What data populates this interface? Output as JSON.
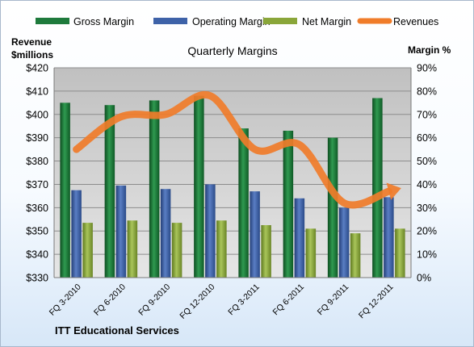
{
  "chart_data": {
    "type": "bar",
    "title": "Quarterly Margins",
    "left_axis_label_line1": "Revenue",
    "left_axis_label_line2": "$millions",
    "right_axis_label": "Margin %",
    "company": "ITT Educational Services",
    "categories": [
      "FQ 3-2010",
      "FQ 6-2010",
      "FQ 9-2010",
      "FQ 12-2010",
      "FQ 3-2011",
      "FQ 6-2011",
      "FQ 9-2011",
      "FQ 12-2011"
    ],
    "ylim_left": [
      330,
      420
    ],
    "left_ticks": [
      "$330",
      "$340",
      "$350",
      "$360",
      "$370",
      "$380",
      "$390",
      "$400",
      "$410",
      "$420"
    ],
    "ylim_right": [
      0,
      90
    ],
    "right_ticks": [
      "0%",
      "10%",
      "20%",
      "30%",
      "40%",
      "50%",
      "60%",
      "70%",
      "80%",
      "90%"
    ],
    "legend_position": "top",
    "grid": true,
    "series": [
      {
        "name": "Gross Margin",
        "type": "bar",
        "axis": "right",
        "color": "#1e7a3c",
        "values": [
          75,
          74,
          76,
          78,
          64,
          63,
          60,
          77
        ]
      },
      {
        "name": "Operating Margin",
        "type": "bar",
        "axis": "right",
        "color": "#3e62a8",
        "values": [
          37.5,
          39.5,
          38,
          40,
          37,
          34,
          30,
          34.5
        ]
      },
      {
        "name": "Net Margin",
        "type": "bar",
        "axis": "right",
        "color": "#8aa63a",
        "values": [
          23.5,
          24.5,
          23.5,
          24.5,
          22.5,
          21,
          19,
          21
        ]
      },
      {
        "name": "Revenues",
        "type": "line",
        "axis": "left",
        "color": "#f07c2a",
        "values": [
          385,
          399,
          400,
          408,
          385,
          387,
          362,
          367
        ]
      }
    ]
  }
}
